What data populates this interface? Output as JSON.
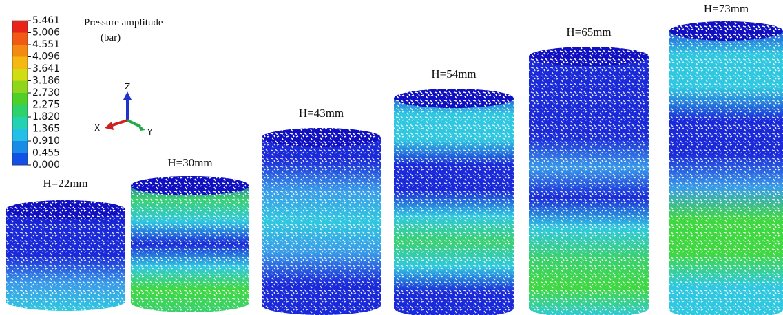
{
  "legend": {
    "title_line1": "Pressure amplitude",
    "title_line2": "(bar)",
    "levels": [
      "5.461",
      "5.006",
      "4.551",
      "4.096",
      "3.641",
      "3.186",
      "2.730",
      "2.275",
      "1.820",
      "1.365",
      "0.910",
      "0.455",
      "0.000"
    ]
  },
  "axes": {
    "z": "Z",
    "x": "X",
    "y": "Y"
  },
  "samples": [
    {
      "label": "H=22mm"
    },
    {
      "label": "H=30mm"
    },
    {
      "label": "H=43mm"
    },
    {
      "label": "H=54mm"
    },
    {
      "label": "H=65mm"
    },
    {
      "label": "H=73mm"
    }
  ]
}
